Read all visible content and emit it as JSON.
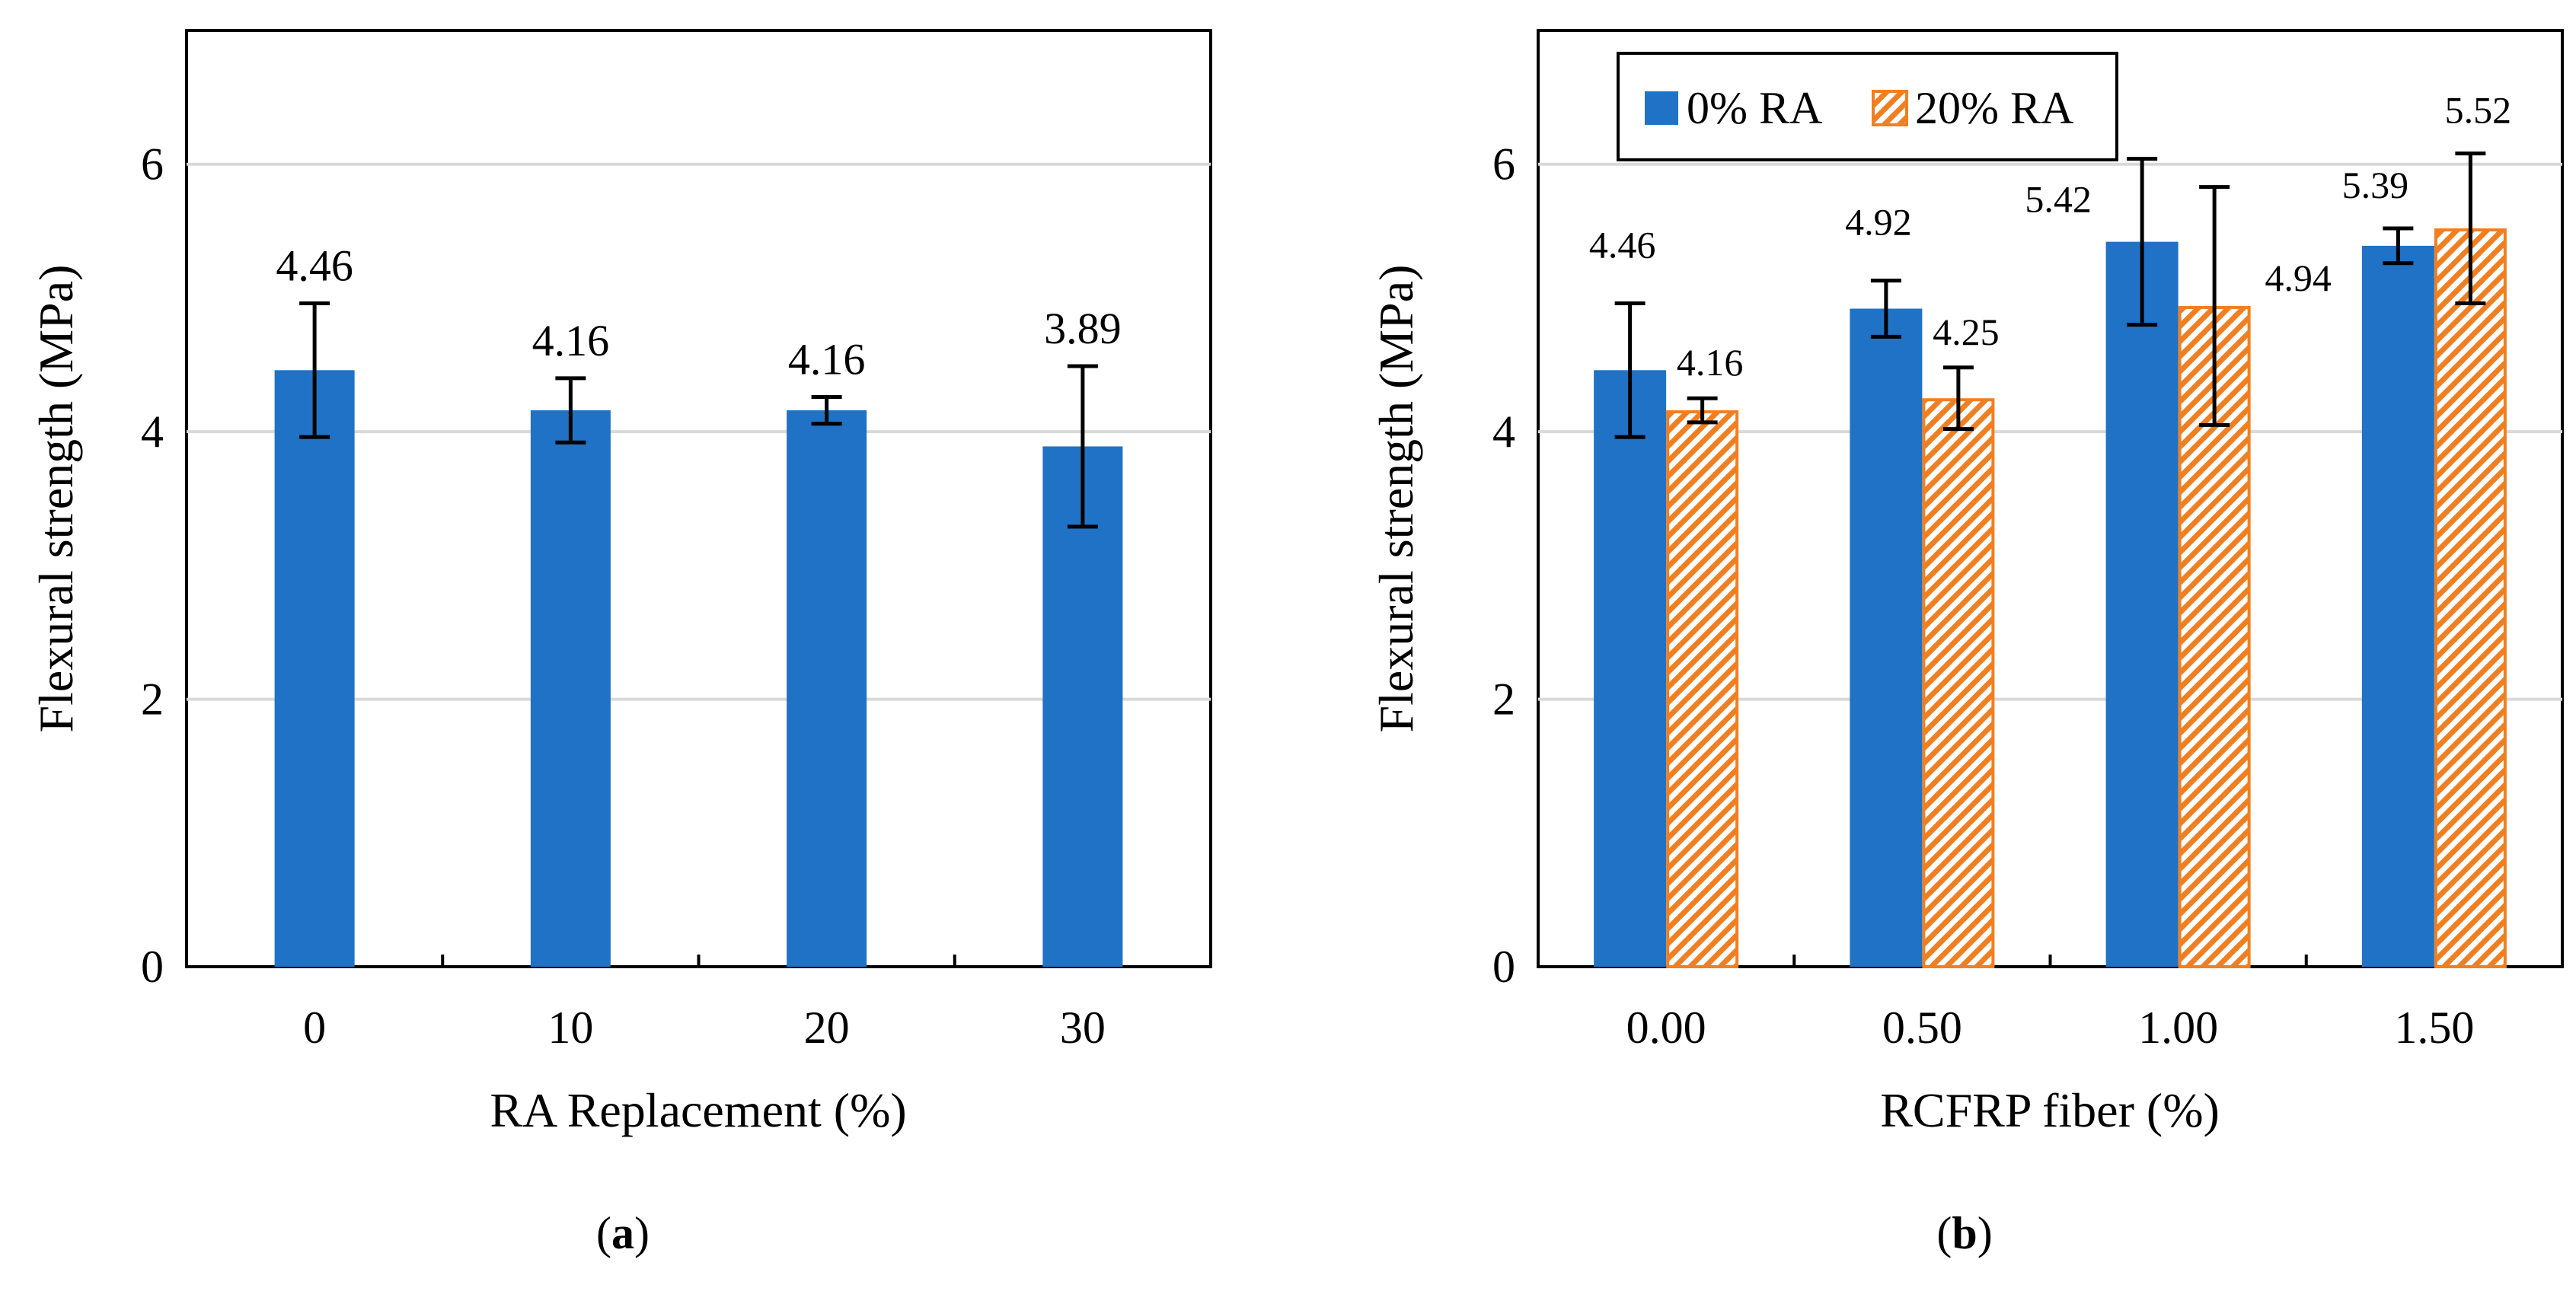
{
  "colors": {
    "blue": "#1F72C6",
    "orange": "#F07F22",
    "grid": "#D9D9D9",
    "axis": "#000000"
  },
  "chart_data": [
    {
      "type": "bar",
      "panel": "a",
      "caption_letter": "a",
      "categories": [
        "0",
        "10",
        "20",
        "30"
      ],
      "series": [
        {
          "name": "",
          "color": "#1F72C6",
          "values": [
            4.46,
            4.16,
            4.16,
            3.89
          ],
          "errors": [
            0.5,
            0.24,
            0.1,
            0.6
          ],
          "labels": [
            "4.46",
            "4.16",
            "4.16",
            "3.89"
          ]
        }
      ],
      "xlabel": "RA Replacement (%)",
      "ylabel": "Flexural strength (MPa)",
      "ylim": [
        0,
        7
      ],
      "yticks": [
        0,
        2,
        4,
        6
      ],
      "ytick_labels": [
        "0",
        "2",
        "4",
        "6"
      ],
      "grid": true,
      "legend": null
    },
    {
      "type": "bar",
      "panel": "b",
      "caption_letter": "b",
      "categories": [
        "0.00",
        "0.50",
        "1.00",
        "1.50"
      ],
      "series": [
        {
          "name": "0% RA",
          "color": "#1F72C6",
          "pattern": "solid",
          "values": [
            4.46,
            4.92,
            5.42,
            5.39
          ],
          "errors": [
            0.5,
            0.21,
            0.62,
            0.13
          ],
          "labels": [
            "4.46",
            "4.92",
            "5.42",
            "5.39"
          ]
        },
        {
          "name": "20% RA",
          "color": "#F07F22",
          "pattern": "diagonal-hatch",
          "values": [
            4.16,
            4.25,
            4.94,
            5.52
          ],
          "errors": [
            0.09,
            0.23,
            0.89,
            0.56
          ],
          "labels": [
            "4.16",
            "4.25",
            "4.94",
            "5.52"
          ]
        }
      ],
      "xlabel": "RCFRP fiber (%)",
      "ylabel": "Flexural strength (MPa)",
      "ylim": [
        0,
        7
      ],
      "yticks": [
        0,
        2,
        4,
        6
      ],
      "ytick_labels": [
        "0",
        "2",
        "4",
        "6"
      ],
      "grid": true,
      "legend": "top-left"
    }
  ]
}
